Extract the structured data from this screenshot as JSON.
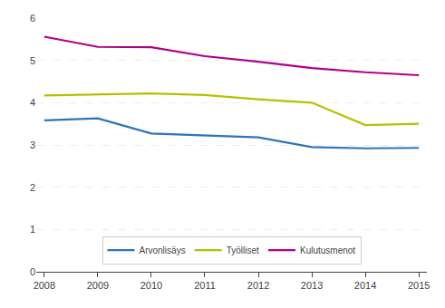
{
  "chart_data": {
    "type": "line",
    "x": [
      2008,
      2009,
      2010,
      2011,
      2012,
      2013,
      2014,
      2015
    ],
    "series": [
      {
        "name": "Arvonlisäys",
        "color": "#2e75b6",
        "values": [
          3.58,
          3.63,
          3.27,
          3.22,
          3.18,
          2.95,
          2.92,
          2.93
        ]
      },
      {
        "name": "Työlliset",
        "color": "#b5c200",
        "values": [
          4.17,
          4.2,
          4.22,
          4.18,
          4.08,
          4.0,
          3.47,
          3.5
        ]
      },
      {
        "name": "Kulutusmenot",
        "color": "#b0008e",
        "values": [
          5.56,
          5.32,
          5.31,
          5.1,
          4.97,
          4.82,
          4.72,
          4.65
        ]
      }
    ],
    "xlim": [
      2007.85,
      2015.15
    ],
    "xticks": [
      2008,
      2009,
      2010,
      2011,
      2012,
      2013,
      2014,
      2015
    ],
    "ylim": [
      0,
      6
    ],
    "yticks": [
      0,
      1,
      2,
      3,
      4,
      5,
      6
    ],
    "grid": true,
    "legend": "bottom"
  }
}
